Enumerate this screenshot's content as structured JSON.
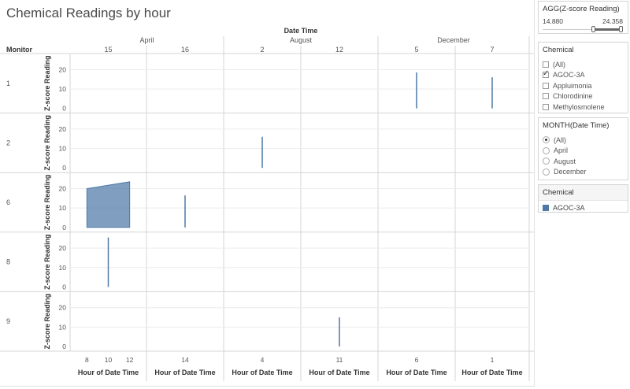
{
  "title": "Chemical Readings by hour",
  "column_header": "Date Time",
  "row_header": "Monitor",
  "y_axis_label": "Z-score Reading",
  "x_axis_label": "Hour of Date Time",
  "months": [
    "April",
    "August",
    "December"
  ],
  "days": [
    "15",
    "16",
    "2",
    "12",
    "5",
    "7"
  ],
  "monitors": [
    "1",
    "2",
    "6",
    "8",
    "9"
  ],
  "y_ticks": [
    "0",
    "10",
    "20"
  ],
  "colors": {
    "mark": "#4e79a7",
    "grid": "#d4d4d4"
  },
  "chart_data": {
    "type": "area",
    "title": "Chemical Readings by hour",
    "ylabel": "Z-score Reading",
    "xlabel": "Hour of Date Time",
    "ylim": [
      0,
      25
    ],
    "columns": [
      {
        "month": "April",
        "day": "15",
        "hour_ticks": [
          8,
          10,
          12
        ]
      },
      {
        "month": "April",
        "day": "16",
        "hour_ticks": [
          14
        ]
      },
      {
        "month": "August",
        "day": "2",
        "hour_ticks": [
          4
        ]
      },
      {
        "month": "August",
        "day": "12",
        "hour_ticks": [
          11
        ]
      },
      {
        "month": "December",
        "day": "5",
        "hour_ticks": [
          6
        ]
      },
      {
        "month": "December",
        "day": "7",
        "hour_ticks": [
          1
        ]
      }
    ],
    "series": [
      {
        "monitor": "1",
        "day": "5",
        "month": "December",
        "points": [
          {
            "hour": 6,
            "value": 18.5
          }
        ]
      },
      {
        "monitor": "1",
        "day": "7",
        "month": "December",
        "points": [
          {
            "hour": 1,
            "value": 16.0
          }
        ]
      },
      {
        "monitor": "2",
        "day": "2",
        "month": "August",
        "points": [
          {
            "hour": 4,
            "value": 16.0
          }
        ]
      },
      {
        "monitor": "6",
        "day": "15",
        "month": "April",
        "points": [
          {
            "hour": 8,
            "value": 20.0
          },
          {
            "hour": 12,
            "value": 23.5
          }
        ]
      },
      {
        "monitor": "6",
        "day": "16",
        "month": "April",
        "points": [
          {
            "hour": 14,
            "value": 16.5
          }
        ]
      },
      {
        "monitor": "8",
        "day": "15",
        "month": "April",
        "points": [
          {
            "hour": 10,
            "value": 25.5
          }
        ]
      },
      {
        "monitor": "9",
        "day": "12",
        "month": "August",
        "points": [
          {
            "hour": 11,
            "value": 15.0
          }
        ]
      }
    ]
  },
  "filters": {
    "range": {
      "title": "AGG(Z-score Reading)",
      "min": "14.880",
      "max": "24.358"
    },
    "chemical": {
      "title": "Chemical",
      "options": [
        {
          "label": "(All)",
          "checked": false
        },
        {
          "label": "AGOC-3A",
          "checked": true
        },
        {
          "label": "Appluimonia",
          "checked": false
        },
        {
          "label": "Chlorodinine",
          "checked": false
        },
        {
          "label": "Methylosmolene",
          "checked": false
        }
      ]
    },
    "month": {
      "title": "MONTH(Date Time)",
      "options": [
        {
          "label": "(All)",
          "checked": true
        },
        {
          "label": "April",
          "checked": false
        },
        {
          "label": "August",
          "checked": false
        },
        {
          "label": "December",
          "checked": false
        }
      ]
    }
  },
  "legend": {
    "title": "Chemical",
    "items": [
      {
        "label": "AGOC-3A",
        "color": "#4e79a7"
      }
    ]
  }
}
